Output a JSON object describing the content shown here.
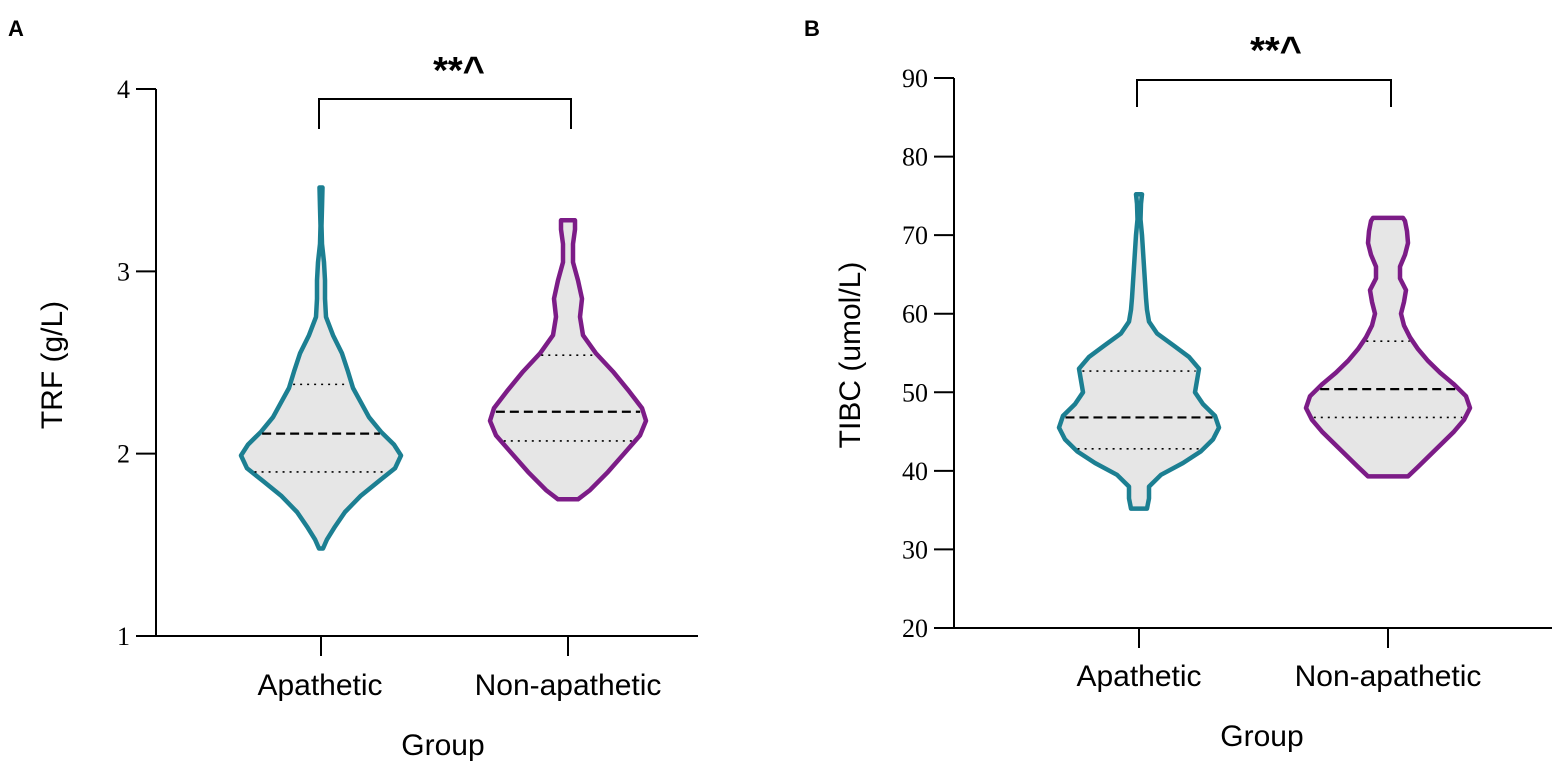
{
  "chart_data": [
    {
      "panel_label": "A",
      "type": "violin",
      "xlabel": "Group",
      "ylabel": "TRF (g/L)",
      "ylim": [
        1,
        4
      ],
      "yticks": [
        1,
        2,
        3,
        4
      ],
      "categories": [
        "Apathetic",
        "Non-apathetic"
      ],
      "significance": {
        "label": "**^",
        "between": [
          "Apathetic",
          "Non-apathetic"
        ]
      },
      "series": [
        {
          "name": "Apathetic",
          "color": "#1c7f92",
          "quartiles": {
            "q1": 1.9,
            "median": 2.11,
            "q3": 2.38
          },
          "profile": [
            [
              1.48,
              0.02
            ],
            [
              1.53,
              0.06
            ],
            [
              1.6,
              0.14
            ],
            [
              1.68,
              0.24
            ],
            [
              1.77,
              0.4
            ],
            [
              1.85,
              0.58
            ],
            [
              1.92,
              0.74
            ],
            [
              1.99,
              0.8
            ],
            [
              2.05,
              0.73
            ],
            [
              2.12,
              0.6
            ],
            [
              2.2,
              0.48
            ],
            [
              2.28,
              0.4
            ],
            [
              2.36,
              0.32
            ],
            [
              2.45,
              0.27
            ],
            [
              2.55,
              0.21
            ],
            [
              2.65,
              0.12
            ],
            [
              2.75,
              0.05
            ],
            [
              2.85,
              0.04
            ],
            [
              2.95,
              0.04
            ],
            [
              3.05,
              0.03
            ],
            [
              3.15,
              0.01
            ],
            [
              3.25,
              0.005
            ],
            [
              3.35,
              0.01
            ],
            [
              3.46,
              0.015
            ]
          ]
        },
        {
          "name": "Non-apathetic",
          "color": "#7c1c87",
          "quartiles": {
            "q1": 2.07,
            "median": 2.23,
            "q3": 2.54
          },
          "profile": [
            [
              1.75,
              0.1
            ],
            [
              1.8,
              0.22
            ],
            [
              1.9,
              0.4
            ],
            [
              2.0,
              0.56
            ],
            [
              2.1,
              0.72
            ],
            [
              2.18,
              0.78
            ],
            [
              2.25,
              0.74
            ],
            [
              2.35,
              0.6
            ],
            [
              2.45,
              0.45
            ],
            [
              2.55,
              0.28
            ],
            [
              2.65,
              0.15
            ],
            [
              2.75,
              0.12
            ],
            [
              2.85,
              0.14
            ],
            [
              2.95,
              0.1
            ],
            [
              3.05,
              0.05
            ],
            [
              3.15,
              0.05
            ],
            [
              3.23,
              0.07
            ],
            [
              3.28,
              0.07
            ]
          ]
        }
      ]
    },
    {
      "panel_label": "B",
      "type": "violin",
      "xlabel": "Group",
      "ylabel": "TIBC (umol/L)",
      "ylim": [
        20,
        90
      ],
      "yticks": [
        20,
        30,
        40,
        50,
        60,
        70,
        80,
        90
      ],
      "categories": [
        "Apathetic",
        "Non-apathetic"
      ],
      "significance": {
        "label": "**^",
        "between": [
          "Apathetic",
          "Non-apathetic"
        ]
      },
      "series": [
        {
          "name": "Apathetic",
          "color": "#1c7f92",
          "quartiles": {
            "q1": 42.8,
            "median": 46.8,
            "q3": 52.7
          },
          "profile": [
            [
              35.2,
              0.08
            ],
            [
              36.5,
              0.1
            ],
            [
              38.0,
              0.1
            ],
            [
              39.5,
              0.22
            ],
            [
              41.0,
              0.44
            ],
            [
              42.5,
              0.62
            ],
            [
              44.0,
              0.74
            ],
            [
              45.5,
              0.8
            ],
            [
              47.0,
              0.76
            ],
            [
              48.5,
              0.64
            ],
            [
              50.0,
              0.56
            ],
            [
              51.5,
              0.58
            ],
            [
              53.0,
              0.6
            ],
            [
              54.5,
              0.5
            ],
            [
              56.0,
              0.34
            ],
            [
              57.5,
              0.18
            ],
            [
              59.0,
              0.1
            ],
            [
              60.5,
              0.08
            ],
            [
              62.0,
              0.07
            ],
            [
              64.0,
              0.06
            ],
            [
              66.0,
              0.05
            ],
            [
              68.0,
              0.04
            ],
            [
              70.0,
              0.03
            ],
            [
              72.0,
              0.015
            ],
            [
              74.0,
              0.02
            ],
            [
              75.2,
              0.03
            ]
          ]
        },
        {
          "name": "Non-apathetic",
          "color": "#7c1c87",
          "quartiles": {
            "q1": 46.8,
            "median": 50.4,
            "q3": 56.5
          },
          "profile": [
            [
              39.3,
              0.2
            ],
            [
              40.5,
              0.3
            ],
            [
              42.0,
              0.42
            ],
            [
              43.5,
              0.54
            ],
            [
              45.0,
              0.66
            ],
            [
              46.5,
              0.76
            ],
            [
              48.0,
              0.82
            ],
            [
              49.5,
              0.78
            ],
            [
              51.0,
              0.66
            ],
            [
              52.5,
              0.52
            ],
            [
              54.0,
              0.4
            ],
            [
              55.5,
              0.3
            ],
            [
              57.0,
              0.22
            ],
            [
              58.5,
              0.16
            ],
            [
              60.0,
              0.13
            ],
            [
              61.5,
              0.16
            ],
            [
              63.0,
              0.18
            ],
            [
              64.5,
              0.12
            ],
            [
              66.0,
              0.12
            ],
            [
              67.5,
              0.17
            ],
            [
              69.0,
              0.2
            ],
            [
              70.5,
              0.19
            ],
            [
              71.8,
              0.17
            ],
            [
              72.2,
              0.15
            ]
          ]
        }
      ]
    }
  ]
}
